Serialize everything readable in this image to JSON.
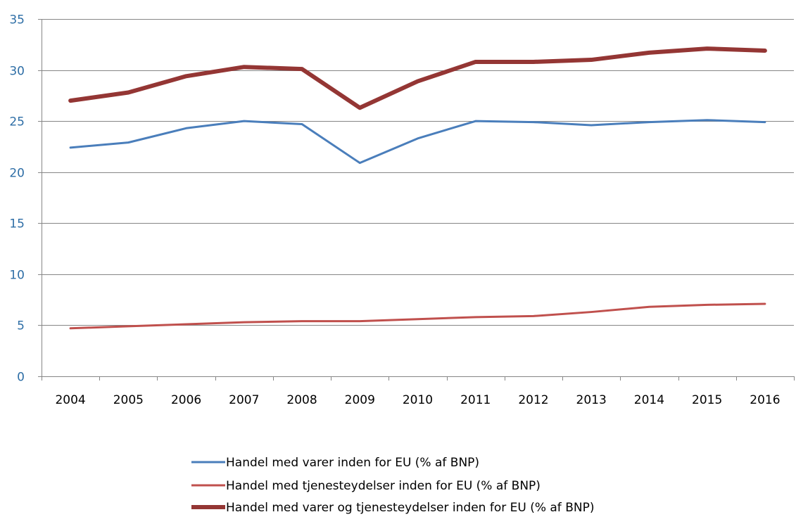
{
  "chart_data": {
    "type": "line",
    "title": "",
    "xlabel": "",
    "ylabel": "",
    "x": [
      "2004",
      "2005",
      "2006",
      "2007",
      "2008",
      "2009",
      "2010",
      "2011",
      "2012",
      "2013",
      "2014",
      "2015",
      "2016"
    ],
    "ylim": [
      0,
      35
    ],
    "yticks": [
      0,
      5,
      10,
      15,
      20,
      25,
      30,
      35
    ],
    "grid": true,
    "legend_position": "bottom",
    "series": [
      {
        "name": "Handel med varer inden for EU (% af BNP)",
        "color": "#4a7ebb",
        "values": [
          22.4,
          22.9,
          24.3,
          25.0,
          24.7,
          20.9,
          23.3,
          25.0,
          24.9,
          24.6,
          24.9,
          25.1,
          24.9
        ]
      },
      {
        "name": "Handel med tjenesteydelser inden for EU (% af BNP)",
        "color": "#c0504d",
        "values": [
          4.7,
          4.9,
          5.1,
          5.3,
          5.4,
          5.4,
          5.6,
          5.8,
          5.9,
          6.3,
          6.8,
          7.0,
          7.1
        ]
      },
      {
        "name": "Handel med varer og tjenesteydelser inden for EU (% af BNP)",
        "color": "#943634",
        "values": [
          27.0,
          27.8,
          29.4,
          30.3,
          30.1,
          26.3,
          28.9,
          30.8,
          30.8,
          31.0,
          31.7,
          32.1,
          31.9
        ]
      }
    ]
  }
}
